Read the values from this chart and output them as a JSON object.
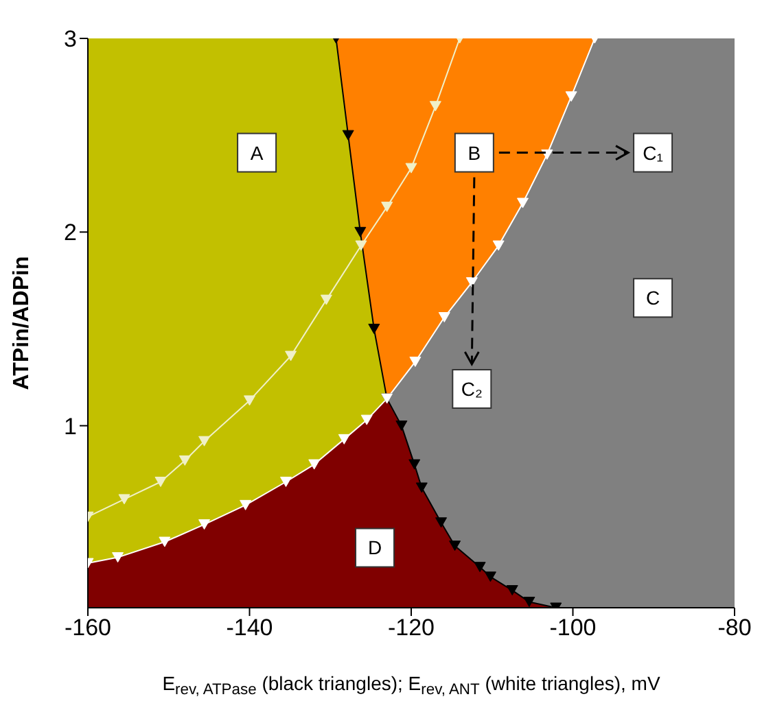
{
  "chart_data": {
    "type": "line",
    "xlabel": "E$_{rev, ATPase}$ (black triangles); E$_{rev, ANT}$ (white triangles), mV",
    "ylabel": "ATPin/ADPin",
    "xlim": [
      -160,
      -80
    ],
    "xticks": [
      -160,
      -140,
      -120,
      -100,
      -80
    ],
    "ylim": [
      0.06,
      3
    ],
    "yticks": [
      1,
      2,
      3
    ],
    "marker": "triangle",
    "series": [
      {
        "type": "area",
        "marker": "none",
        "color": "#ff8000",
        "x": [
          -129.3,
          -97.3
        ],
        "values": [
          3,
          3
        ]
      },
      {
        "type": "area",
        "marker": "none",
        "color": "#c2c000",
        "x": [
          -160,
          -129.3,
          -127.8,
          -126.3,
          -124.6,
          -123
        ],
        "values": [
          3,
          3,
          2.5,
          2,
          1.5,
          1.14
        ]
      },
      {
        "type": "area",
        "marker": "none",
        "color": "#808080",
        "x": [
          -123,
          -119.5,
          -115.9,
          -112.5,
          -109.2,
          -106.2,
          -103.2,
          -100.2,
          -97.3,
          -80
        ],
        "values": [
          1.14,
          1.33,
          1.56,
          1.74,
          1.93,
          2.15,
          2.4,
          2.7,
          3,
          3
        ]
      },
      {
        "type": "area",
        "marker": "none",
        "color": "#800000",
        "x": [
          -160,
          -156.3,
          -150.5,
          -145.6,
          -140.5,
          -135.5,
          -132,
          -128.3,
          -125.5,
          -123,
          -121.2,
          -119.6,
          -118.7,
          -116.3,
          -114.6,
          -111.5,
          -110.2,
          -107.5,
          -105.4,
          -102.1
        ],
        "values": [
          0.29,
          0.32,
          0.4,
          0.49,
          0.59,
          0.71,
          0.8,
          0.93,
          1.03,
          1.14,
          1,
          0.8,
          0.68,
          0.5,
          0.38,
          0.27,
          0.22,
          0.15,
          0.09,
          0.06
        ]
      },
      {
        "color": "#000000",
        "x": [
          -129.3,
          -127.8,
          -126.3,
          -124.6,
          -123,
          -121.2,
          -119.6,
          -118.7,
          -116.3,
          -114.6,
          -111.5,
          -110.2,
          -107.5,
          -105.4,
          -102.1
        ],
        "values": [
          3,
          2.5,
          2,
          1.5,
          1.14,
          1,
          0.8,
          0.68,
          0.5,
          0.38,
          0.27,
          0.22,
          0.15,
          0.09,
          0.06
        ]
      },
      {
        "color": "#ffffff",
        "x": [
          -160,
          -156.3,
          -150.5,
          -145.6,
          -140.5,
          -135.5,
          -132,
          -128.3,
          -125.5,
          -123,
          -119.5,
          -115.9,
          -112.5,
          -109.2,
          -106.2,
          -103.2,
          -100.2,
          -97.3
        ],
        "values": [
          0.29,
          0.32,
          0.4,
          0.49,
          0.59,
          0.71,
          0.8,
          0.93,
          1.03,
          1.14,
          1.33,
          1.56,
          1.74,
          1.93,
          2.15,
          2.4,
          2.7,
          3
        ]
      },
      {
        "color": "#f0f0c8",
        "x": [
          -160,
          -155.5,
          -151,
          -148,
          -145.6,
          -140,
          -134.9,
          -130.5,
          -126.2,
          -123,
          -120,
          -117,
          -114
        ],
        "values": [
          0.53,
          0.62,
          0.71,
          0.82,
          0.92,
          1.13,
          1.36,
          1.65,
          1.93,
          2.13,
          2.33,
          2.65,
          3
        ]
      }
    ],
    "annotations": [
      {
        "text": "A",
        "x": -139.1,
        "y": 2.41
      },
      {
        "text": "B",
        "x": -112.2,
        "y": 2.41
      },
      {
        "text": "C₁",
        "x": -90.1,
        "y": 2.41
      },
      {
        "text": "C",
        "x": -90.1,
        "y": 1.66
      },
      {
        "text": "C₂",
        "x": -112.5,
        "y": 1.19
      },
      {
        "text": "D",
        "x": -124.5,
        "y": 0.37
      }
    ]
  }
}
